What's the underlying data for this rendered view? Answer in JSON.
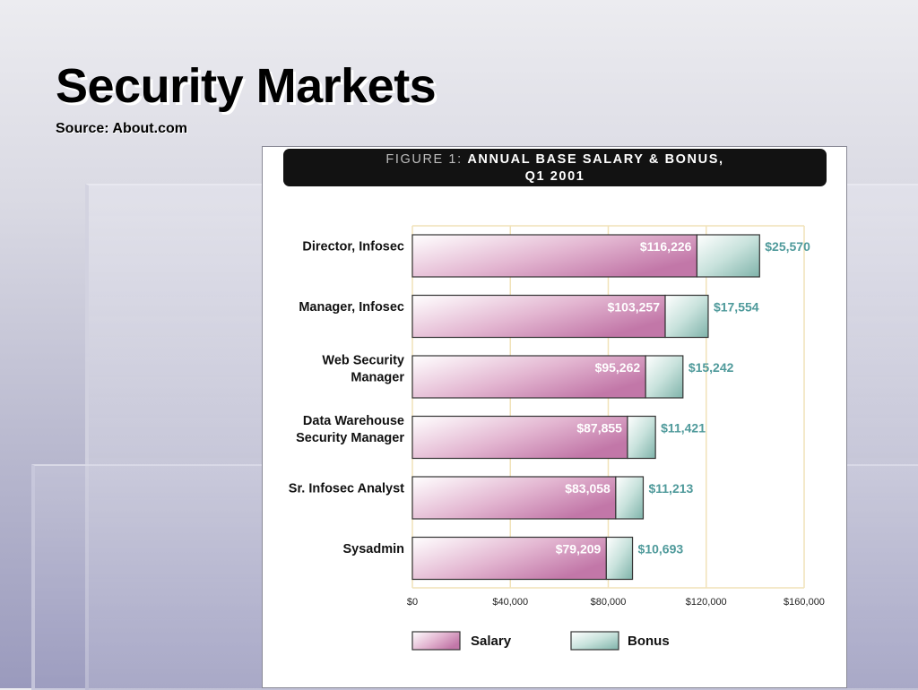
{
  "slide": {
    "title": "Security Markets",
    "source": "Source: About.com"
  },
  "figure": {
    "banner_prefix": "FIGURE 1:",
    "banner_main": "ANNUAL BASE SALARY & BONUS,",
    "banner_sub": "Q1 2001"
  },
  "colors": {
    "salary": "#c77fae",
    "bonus": "#8fbcb4",
    "bonus_label": "#4f9a9b",
    "grid": "#f1e2b8"
  },
  "chart_data": {
    "type": "bar",
    "orientation": "horizontal",
    "stacked": true,
    "categories": [
      "Director, Infosec",
      "Manager, Infosec",
      "Web Security Manager",
      "Data Warehouse Security Manager",
      "Sr. Infosec Analyst",
      "Sysadmin"
    ],
    "category_lines": [
      [
        "Director, Infosec"
      ],
      [
        "Manager, Infosec"
      ],
      [
        "Web Security",
        "Manager"
      ],
      [
        "Data Warehouse",
        "Security Manager"
      ],
      [
        "Sr. Infosec Analyst"
      ],
      [
        "Sysadmin"
      ]
    ],
    "series": [
      {
        "name": "Salary",
        "values": [
          116226,
          103257,
          95262,
          87855,
          83058,
          79209
        ],
        "labels": [
          "$116,226",
          "$103,257",
          "$95,262",
          "$87,855",
          "$83,058",
          "$79,209"
        ]
      },
      {
        "name": "Bonus",
        "values": [
          25570,
          17554,
          15242,
          11421,
          11213,
          10693
        ],
        "labels": [
          "$25,570",
          "$17,554",
          "$15,242",
          "$11,421",
          "$11,213",
          "$10,693"
        ]
      }
    ],
    "xlim": [
      0,
      160000
    ],
    "xticks": [
      0,
      40000,
      80000,
      120000,
      160000
    ],
    "xtick_labels": [
      "$0",
      "$40,000",
      "$80,000",
      "$120,000",
      "$160,000"
    ],
    "title": "FIGURE 1: ANNUAL BASE SALARY & BONUS, Q1 2001",
    "grid": true,
    "legend_position": "bottom"
  }
}
